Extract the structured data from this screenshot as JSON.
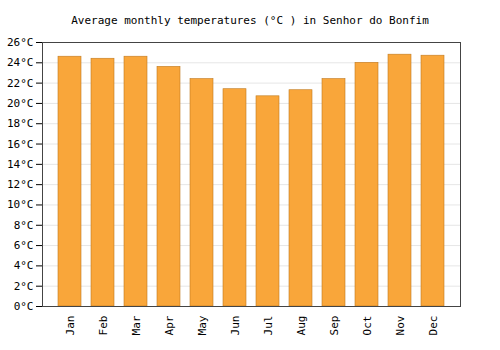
{
  "chart_data": {
    "type": "bar",
    "title": "Average monthly temperatures (°C ) in Senhor do Bonfim",
    "categories": [
      "Jan",
      "Feb",
      "Mar",
      "Apr",
      "May",
      "Jun",
      "Jul",
      "Aug",
      "Sep",
      "Oct",
      "Nov",
      "Dec"
    ],
    "values": [
      24.6,
      24.4,
      24.6,
      23.6,
      22.4,
      21.4,
      20.7,
      21.3,
      22.4,
      24.0,
      24.8,
      24.7
    ],
    "color": "#f9a63a",
    "ylim": [
      0,
      26
    ],
    "yticks": [
      {
        "value": 0,
        "label": "0°C"
      },
      {
        "value": 2,
        "label": "2°C"
      },
      {
        "value": 4,
        "label": "4°C"
      },
      {
        "value": 6,
        "label": "6°C"
      },
      {
        "value": 8,
        "label": "8°C"
      },
      {
        "value": 10,
        "label": "10°C"
      },
      {
        "value": 12,
        "label": "12°C"
      },
      {
        "value": 14,
        "label": "14°C"
      },
      {
        "value": 16,
        "label": "16°C"
      },
      {
        "value": 18,
        "label": "18°C"
      },
      {
        "value": 20,
        "label": "20°C"
      },
      {
        "value": 22,
        "label": "22°C"
      },
      {
        "value": 24,
        "label": "24°C"
      },
      {
        "value": 26,
        "label": "26°C"
      }
    ],
    "grid": true
  }
}
